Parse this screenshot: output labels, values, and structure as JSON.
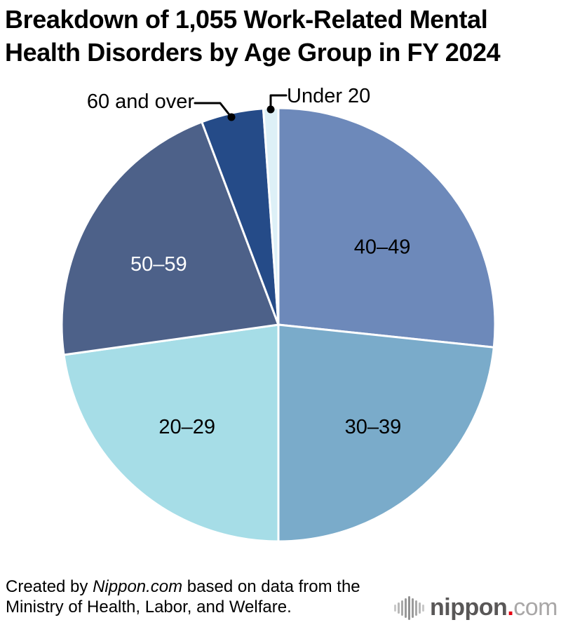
{
  "title": {
    "line1": "Breakdown of 1,055 Work-Related Mental",
    "line2": "Health Disorders by Age Group in FY 2024"
  },
  "chart_data": {
    "type": "pie",
    "title": "Breakdown of 1,055 Work-Related Mental Health Disorders by Age Group in FY 2024",
    "total_cases": 1055,
    "fiscal_year": "FY 2024",
    "value_note": "percent shares estimated from slice angles; no numeric labels shown in chart",
    "start_angle_deg": 0,
    "direction": "clockwise",
    "border_color": "#ffffff",
    "border_width": 3,
    "legend_position": "none",
    "slices": [
      {
        "label": "40–49",
        "percent_est": 26.7,
        "angle_deg": 96.0,
        "color": "#6d89ba",
        "label_color": "#000000",
        "label_placement": "inside",
        "label_angle_deg": 53,
        "label_r": 0.6
      },
      {
        "label": "30–39",
        "percent_est": 23.3,
        "angle_deg": 84.0,
        "color": "#7aabca",
        "label_color": "#000000",
        "label_placement": "inside",
        "label_angle_deg": 137,
        "label_r": 0.64
      },
      {
        "label": "20–29",
        "percent_est": 22.8,
        "angle_deg": 82.0,
        "color": "#a6dde7",
        "label_color": "#000000",
        "label_placement": "inside",
        "label_angle_deg": 222,
        "label_r": 0.63
      },
      {
        "label": "50–59",
        "percent_est": 21.5,
        "angle_deg": 77.3,
        "color": "#4d6189",
        "label_color": "#ffffff",
        "label_placement": "inside",
        "label_angle_deg": 297,
        "label_r": 0.62
      },
      {
        "label": "60 and over",
        "percent_est": 4.6,
        "angle_deg": 16.7,
        "color": "#254b88",
        "label_color": "#000000",
        "label_placement": "callout"
      },
      {
        "label": "Under 20",
        "percent_est": 1.1,
        "angle_deg": 4.0,
        "color": "#ddf0f7",
        "label_color": "#000000",
        "label_placement": "callout"
      }
    ]
  },
  "footer": {
    "credit_prefix": "Created by ",
    "credit_source": "Nippon.com",
    "credit_suffix": " based on data from the",
    "credit_line2": "Ministry of Health, Labor, and Welfare."
  },
  "logo": {
    "icon": "soundwave-bars-icon",
    "name": "nippon",
    "dot": ".",
    "tld": "com",
    "name_color": "#595757",
    "dot_color": "#e60012",
    "tld_color": "#a9a7a7"
  }
}
